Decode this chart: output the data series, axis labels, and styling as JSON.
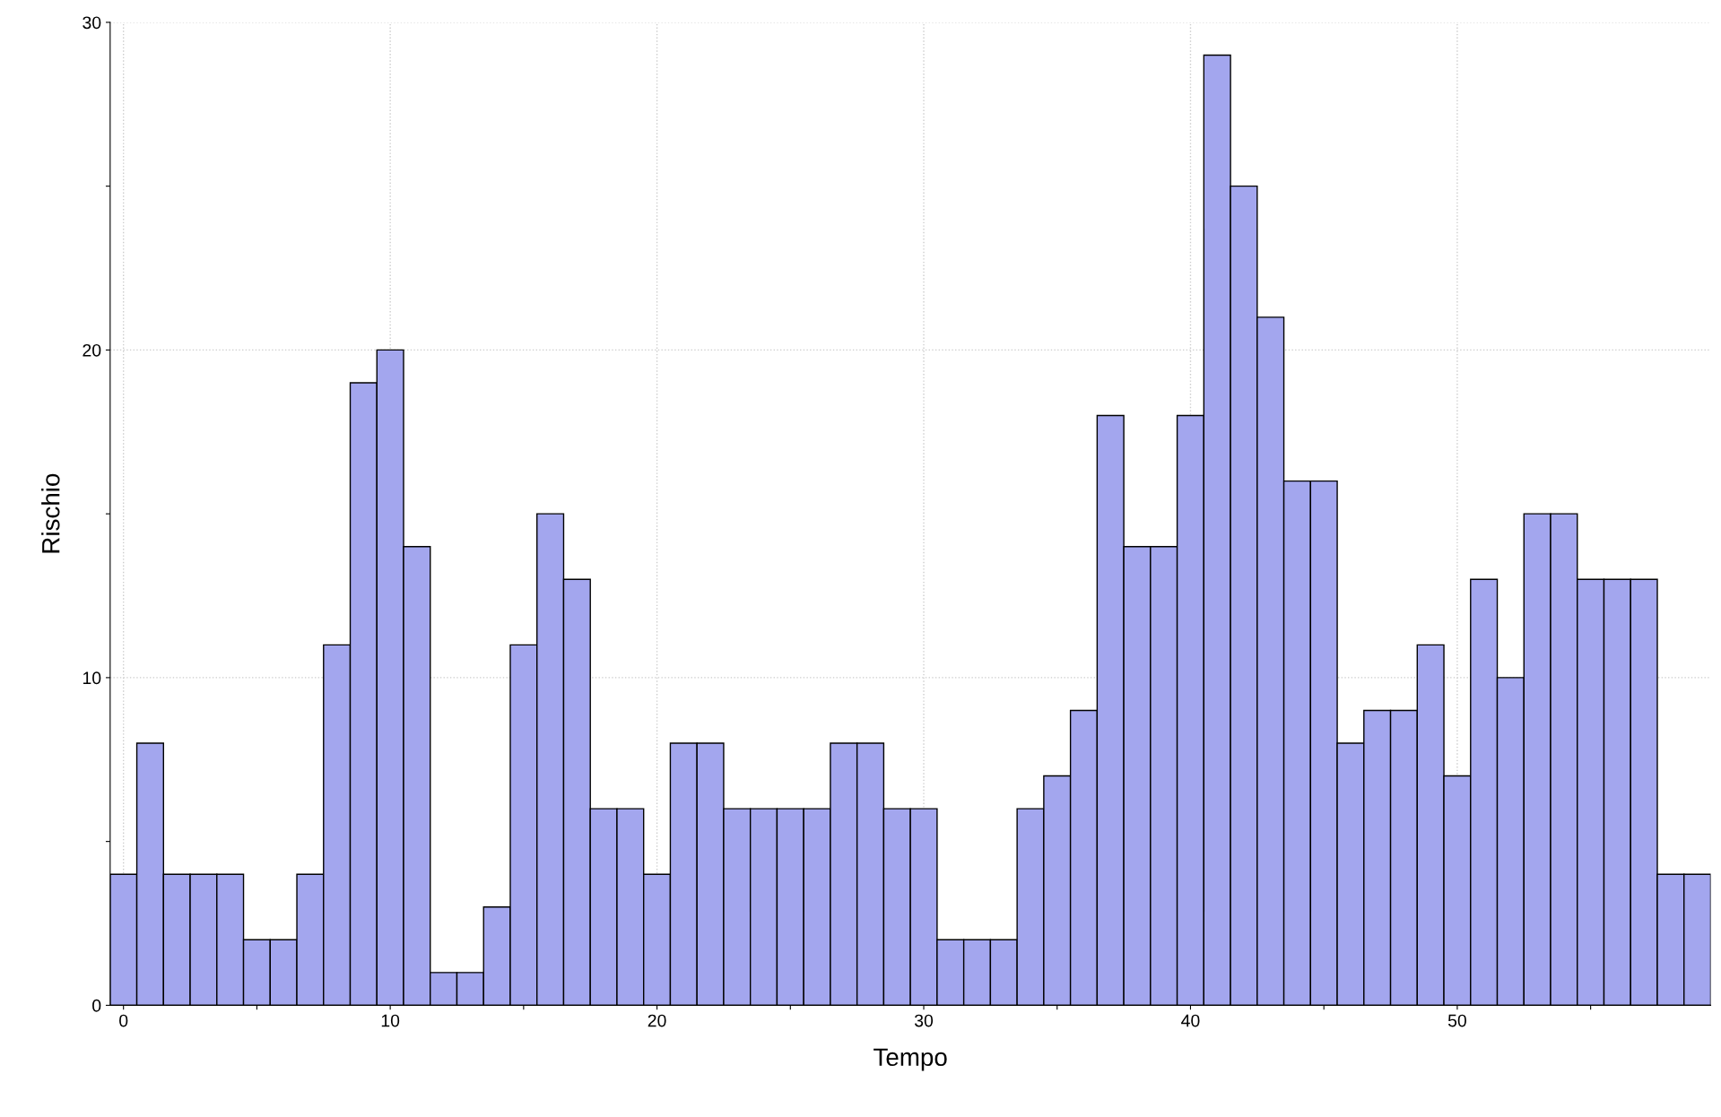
{
  "chart_data": {
    "type": "histogram",
    "xlabel": "Tempo",
    "ylabel": "Rischio",
    "color": "#a3a6ee",
    "bins": [
      -0.5,
      0.5,
      1.5,
      2.5,
      3.5,
      4.5,
      5.5,
      6.5,
      7.5,
      8.5,
      9.5,
      10.5,
      11.5,
      12.5,
      13.5,
      14.5,
      15.5,
      16.5,
      17.5,
      18.5,
      19.5,
      20.5,
      21.5,
      22.5,
      23.5,
      24.5,
      25.5,
      26.5,
      27.5,
      28.5,
      29.5,
      30.5,
      31.5,
      32.5,
      33.5,
      34.5,
      35.5,
      36.5,
      37.5,
      38.5,
      39.5,
      40.5,
      41.5,
      42.5,
      43.5,
      44.5,
      45.5,
      46.5,
      47.5,
      48.5,
      49.5,
      50.5,
      51.5,
      52.5,
      53.5,
      54.5,
      55.5,
      56.5,
      57.5,
      58.5,
      59.5
    ],
    "values": [
      4,
      8,
      4,
      4,
      4,
      2,
      2,
      4,
      11,
      19,
      20,
      14,
      1,
      1,
      3,
      11,
      15,
      13,
      6,
      6,
      4,
      8,
      8,
      6,
      6,
      6,
      6,
      8,
      8,
      6,
      6,
      2,
      2,
      2,
      6,
      7,
      9,
      18,
      14,
      14,
      18,
      29,
      25,
      21,
      16,
      16,
      8,
      9,
      9,
      11,
      7,
      13,
      10,
      15,
      15,
      13,
      13,
      13,
      4,
      4
    ],
    "xlim": [
      -0.5,
      59.5
    ],
    "xticks": [
      0,
      {
        "value": 5,
        "label": null
      },
      10,
      {
        "value": 15,
        "label": null
      },
      20,
      {
        "value": 25,
        "label": null
      },
      30,
      {
        "value": 35,
        "label": null
      },
      40,
      {
        "value": 45,
        "label": null
      },
      50,
      {
        "value": 55,
        "label": null
      }
    ],
    "ylim": [
      0,
      30
    ],
    "yticks": [
      0,
      {
        "value": 5,
        "label": null
      },
      10,
      {
        "value": 15,
        "label": null
      },
      20,
      {
        "value": 25,
        "label": null
      },
      30
    ],
    "grid": true
  }
}
